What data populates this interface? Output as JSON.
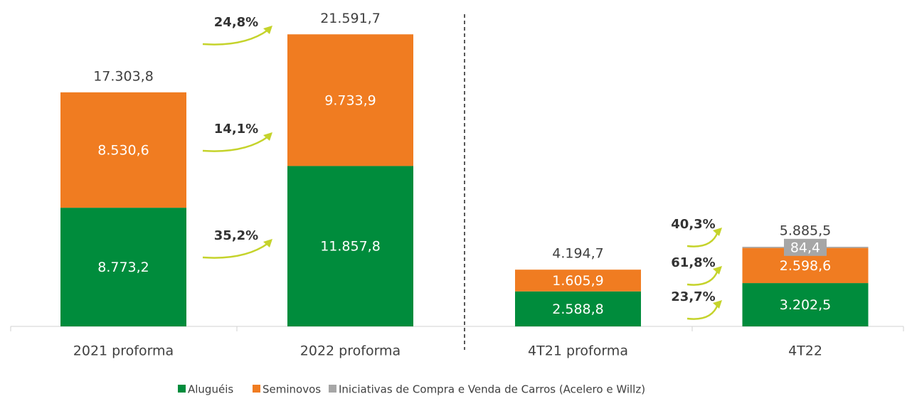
{
  "chart_data": {
    "type": "stacked_bar",
    "categories": [
      "2021 proforma",
      "2022 proforma",
      "4T21 proforma",
      "4T22"
    ],
    "series": [
      {
        "name": "Aluguéis",
        "color": "#008c3c",
        "values": [
          8773.2,
          11857.8,
          2588.8,
          3202.5
        ],
        "value_labels": [
          "8.773,2",
          "11.857,8",
          "2.588,8",
          "3.202,5"
        ]
      },
      {
        "name": "Seminovos",
        "color": "#f07c21",
        "values": [
          8530.6,
          9733.9,
          1605.9,
          2598.6
        ],
        "value_labels": [
          "8.530,6",
          "9.733,9",
          "1.605,9",
          "2.598,6"
        ]
      },
      {
        "name": "Iniciativas de Compra e Venda de Carros (Acelero e Willz)",
        "color": "#a6a6a6",
        "values": [
          null,
          null,
          null,
          84.4
        ],
        "value_labels": [
          null,
          null,
          null,
          "84,4"
        ]
      }
    ],
    "totals": {
      "values": [
        17303.8,
        21591.7,
        4194.7,
        5885.5
      ],
      "value_labels": [
        "17.303,8",
        "21.591,7",
        "4.194,7",
        "5.885,5"
      ]
    },
    "growth": [
      {
        "values": [
          35.2,
          14.1,
          24.8
        ],
        "value_labels": [
          "35,2%",
          "14,1%",
          "24,8%"
        ]
      },
      {
        "values": [
          23.7,
          61.8,
          40.3
        ],
        "value_labels": [
          "23,7%",
          "61,8%",
          "40,3%"
        ]
      }
    ],
    "ylim": [
      0,
      22500
    ]
  }
}
